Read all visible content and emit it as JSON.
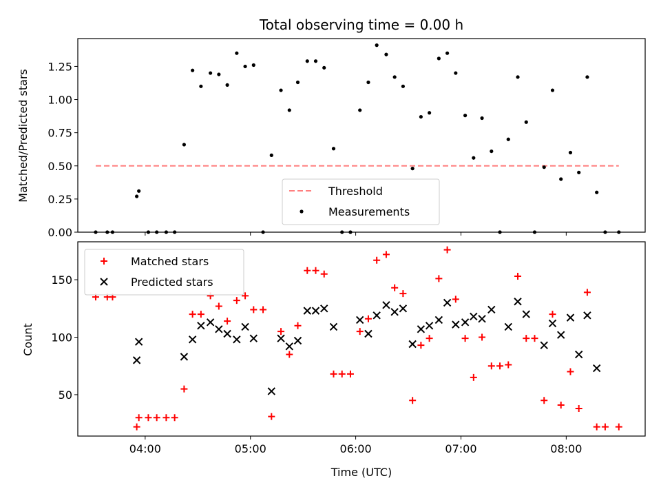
{
  "chart_data": [
    {
      "type": "scatter",
      "title": "Total observing time = 0.00 h",
      "xlabel": "",
      "ylabel": "Matched/Predicted stars",
      "ylim": [
        0,
        1.46
      ],
      "yticks": [
        "0.00",
        "0.25",
        "0.50",
        "0.75",
        "1.00",
        "1.25"
      ],
      "ytick_values": [
        0,
        0.25,
        0.5,
        0.75,
        1.0,
        1.25
      ],
      "legend_position": "lower-center",
      "series": [
        {
          "name": "Threshold",
          "kind": "dashed-line",
          "color": "#ff7f7f",
          "x": [
            3.53,
            8.5
          ],
          "y": [
            0.5,
            0.5
          ]
        },
        {
          "name": "Measurements",
          "kind": "dots",
          "color": "#000000",
          "x": [
            3.53,
            3.64,
            3.69,
            3.92,
            3.94,
            4.03,
            4.11,
            4.2,
            4.28,
            4.37,
            4.45,
            4.53,
            4.62,
            4.7,
            4.78,
            4.87,
            4.95,
            5.03,
            5.12,
            5.2,
            5.29,
            5.37,
            5.45,
            5.54,
            5.62,
            5.7,
            5.79,
            5.87,
            5.95,
            6.04,
            6.12,
            6.2,
            6.29,
            6.37,
            6.45,
            6.54,
            6.62,
            6.7,
            6.79,
            6.87,
            6.95,
            7.04,
            7.12,
            7.2,
            7.29,
            7.37,
            7.45,
            7.54,
            7.62,
            7.7,
            7.79,
            7.87,
            7.95,
            8.04,
            8.12,
            8.2,
            8.29,
            8.37,
            8.5
          ],
          "y": [
            0.0,
            0.0,
            0.0,
            0.27,
            0.31,
            0.0,
            0.0,
            0.0,
            0.0,
            0.66,
            1.22,
            1.1,
            1.2,
            1.19,
            1.11,
            1.35,
            1.25,
            1.26,
            0.0,
            0.58,
            1.07,
            0.92,
            1.13,
            1.29,
            1.29,
            1.24,
            0.63,
            0.0,
            0.0,
            0.92,
            1.13,
            1.41,
            1.34,
            1.17,
            1.1,
            0.48,
            0.87,
            0.9,
            1.31,
            1.35,
            1.2,
            0.88,
            0.56,
            0.86,
            0.61,
            0.0,
            0.7,
            1.17,
            0.83,
            0.0,
            0.49,
            1.07,
            0.4,
            0.6,
            0.45,
            1.17,
            0.3,
            0.0,
            0.0
          ]
        }
      ]
    },
    {
      "type": "scatter",
      "title": "",
      "xlabel": "Time (UTC)",
      "ylabel": "Count",
      "xlim": [
        3.36,
        8.75
      ],
      "ylim": [
        14,
        183
      ],
      "xticks": [
        "04:00",
        "05:00",
        "06:00",
        "07:00",
        "08:00"
      ],
      "xtick_values": [
        4,
        5,
        6,
        7,
        8
      ],
      "yticks": [
        "50",
        "100",
        "150"
      ],
      "ytick_values": [
        50,
        100,
        150
      ],
      "legend_position": "upper-left",
      "series": [
        {
          "name": "Matched stars",
          "kind": "plus",
          "color": "#ff0000",
          "x": [
            3.53,
            3.64,
            3.69,
            3.92,
            3.94,
            4.03,
            4.11,
            4.2,
            4.28,
            4.37,
            4.45,
            4.53,
            4.62,
            4.7,
            4.78,
            4.87,
            4.95,
            5.03,
            5.12,
            5.2,
            5.29,
            5.37,
            5.45,
            5.54,
            5.62,
            5.7,
            5.79,
            5.87,
            5.95,
            6.04,
            6.12,
            6.2,
            6.29,
            6.37,
            6.45,
            6.54,
            6.62,
            6.7,
            6.79,
            6.87,
            6.95,
            7.04,
            7.12,
            7.2,
            7.29,
            7.37,
            7.45,
            7.54,
            7.62,
            7.7,
            7.79,
            7.87,
            7.95,
            8.04,
            8.12,
            8.2,
            8.29,
            8.37,
            8.5
          ],
          "y": [
            135,
            135,
            135,
            22,
            30,
            30,
            30,
            30,
            30,
            55,
            120,
            120,
            136,
            127,
            114,
            132,
            136,
            124,
            124,
            31,
            105,
            85,
            110,
            158,
            158,
            155,
            68,
            68,
            68,
            105,
            116,
            167,
            172,
            143,
            138,
            45,
            93,
            99,
            151,
            176,
            133,
            99,
            65,
            100,
            75,
            75,
            76,
            153,
            99,
            99,
            45,
            120,
            41,
            70,
            38,
            139,
            22,
            22,
            22
          ]
        },
        {
          "name": "Predicted stars",
          "kind": "cross",
          "color": "#000000",
          "x": [
            3.92,
            3.94,
            4.37,
            4.45,
            4.53,
            4.62,
            4.7,
            4.78,
            4.87,
            4.95,
            5.03,
            5.2,
            5.29,
            5.37,
            5.45,
            5.54,
            5.62,
            5.7,
            5.79,
            6.04,
            6.12,
            6.2,
            6.29,
            6.37,
            6.45,
            6.54,
            6.62,
            6.7,
            6.79,
            6.87,
            6.95,
            7.04,
            7.12,
            7.2,
            7.29,
            7.45,
            7.54,
            7.62,
            7.79,
            7.87,
            7.95,
            8.04,
            8.12,
            8.2,
            8.29
          ],
          "y": [
            80,
            96,
            83,
            98,
            110,
            113,
            107,
            103,
            98,
            109,
            99,
            53,
            99,
            92,
            97,
            123,
            123,
            125,
            109,
            115,
            103,
            119,
            128,
            122,
            125,
            94,
            107,
            110,
            115,
            130,
            111,
            113,
            118,
            116,
            124,
            109,
            131,
            120,
            93,
            112,
            102,
            117,
            85,
            119,
            73
          ]
        }
      ]
    }
  ]
}
